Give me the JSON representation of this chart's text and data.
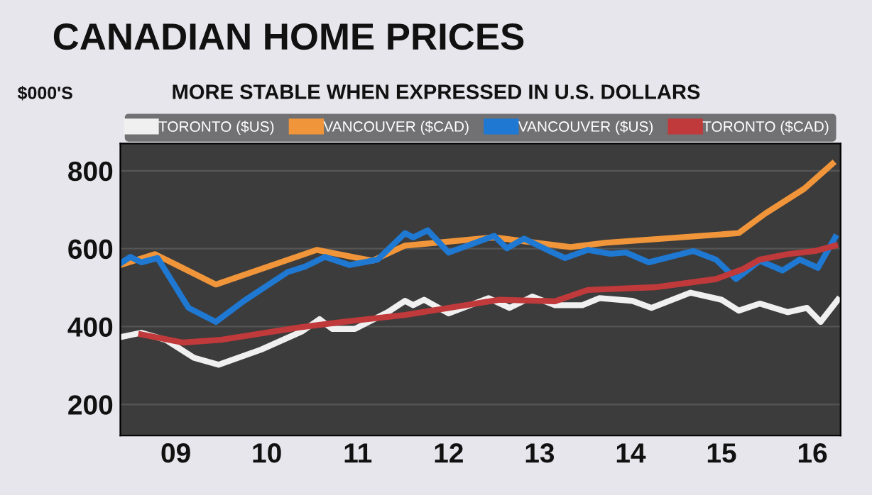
{
  "chart_data": {
    "type": "line",
    "title": "CANADIAN HOME PRICES",
    "subtitle": "MORE STABLE WHEN EXPRESSED IN U.S. DOLLARS",
    "ylabel": "$000'S",
    "series": [
      {
        "name": "TORONTO ($US)",
        "color": "#f0f0f0",
        "x": [
          8.39,
          8.62,
          8.89,
          9.2,
          9.47,
          9.94,
          10.39,
          10.58,
          10.72,
          10.97,
          11.33,
          11.52,
          11.61,
          11.73,
          12.0,
          12.44,
          12.67,
          12.92,
          13.17,
          13.47,
          13.66,
          14.02,
          14.23,
          14.66,
          15.0,
          15.19,
          15.42,
          15.73,
          15.94,
          16.09,
          16.28
        ],
        "values": [
          373,
          384,
          366,
          320,
          302,
          341,
          388,
          419,
          394,
          394,
          437,
          466,
          455,
          469,
          434,
          473,
          448,
          477,
          455,
          455,
          473,
          466,
          448,
          487,
          469,
          441,
          459,
          437,
          448,
          412,
          469
        ]
      },
      {
        "name": "VANCOUVER ($CAD)",
        "color": "#f0953a",
        "x": [
          8.39,
          8.77,
          9.44,
          10.55,
          11.16,
          11.52,
          12.5,
          13.34,
          13.72,
          15.19,
          15.48,
          15.91,
          16.22
        ],
        "values": [
          558,
          586,
          508,
          597,
          569,
          608,
          629,
          604,
          615,
          640,
          690,
          754,
          818
        ]
      },
      {
        "name": "VANCOUVER ($US)",
        "color": "#1f78d1",
        "x": [
          8.39,
          8.5,
          8.62,
          8.8,
          9.14,
          9.44,
          9.75,
          10.23,
          10.42,
          10.64,
          10.91,
          11.22,
          11.52,
          11.61,
          11.77,
          12.0,
          12.5,
          12.64,
          12.83,
          13.11,
          13.28,
          13.53,
          13.78,
          13.95,
          14.2,
          14.69,
          14.94,
          15.16,
          15.42,
          15.67,
          15.86,
          16.06,
          16.25
        ],
        "values": [
          562,
          579,
          565,
          576,
          448,
          412,
          466,
          540,
          554,
          579,
          558,
          572,
          640,
          629,
          647,
          590,
          633,
          601,
          626,
          594,
          576,
          597,
          587,
          590,
          565,
          594,
          572,
          522,
          569,
          544,
          572,
          551,
          629
        ]
      },
      {
        "name": "TORONTO ($CAD)",
        "color": "#c0393b",
        "x": [
          8.62,
          9.08,
          9.5,
          10.36,
          10.84,
          11.52,
          12.56,
          13.17,
          13.53,
          14.27,
          14.94,
          15.23,
          15.42,
          15.73,
          16.03,
          16.25
        ],
        "values": [
          380,
          359,
          366,
          398,
          412,
          430,
          469,
          465,
          494,
          501,
          522,
          547,
          572,
          586,
          594,
          608
        ]
      }
    ],
    "xlim": [
      8.39,
      16.31
    ],
    "xticks": [
      {
        "value": 9,
        "label": "09"
      },
      {
        "value": 10,
        "label": "10"
      },
      {
        "value": 11,
        "label": "11"
      },
      {
        "value": 12,
        "label": "12"
      },
      {
        "value": 13,
        "label": "13"
      },
      {
        "value": 14,
        "label": "14"
      },
      {
        "value": 15,
        "label": "15"
      },
      {
        "value": 16,
        "label": "16"
      }
    ],
    "ylim": [
      120,
      870
    ],
    "yticks": [
      200,
      400,
      600,
      800
    ],
    "grid": "y",
    "legend": "top",
    "line_style": "solid",
    "marker": "none"
  }
}
